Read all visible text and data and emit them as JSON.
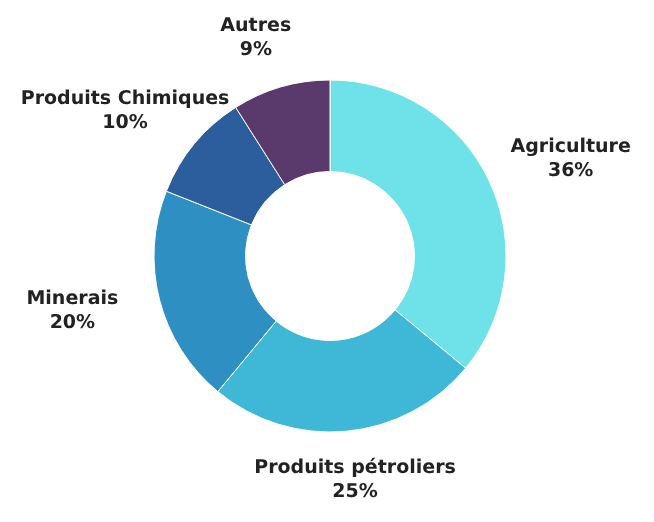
{
  "chart_data": {
    "type": "donut",
    "categories": [
      "Agriculture",
      "Produits pétroliers",
      "Minerais",
      "Produits Chimiques",
      "Autres"
    ],
    "values": [
      36,
      25,
      20,
      10,
      9
    ],
    "value_labels": [
      "36%",
      "25%",
      "20%",
      "10%",
      "9%"
    ],
    "colors": [
      "#6ee2e8",
      "#3fb8d8",
      "#2e8fc2",
      "#2c5d9c",
      "#5a3a6c"
    ]
  }
}
